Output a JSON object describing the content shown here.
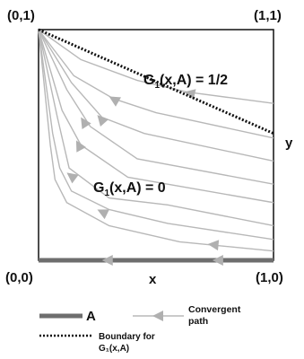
{
  "corners": {
    "top_left": "(0,1)",
    "top_right": "(1,1)",
    "bottom_left": "(0,0)",
    "bottom_right": "(1,0)"
  },
  "axes": {
    "x": "x",
    "y": "y"
  },
  "annotations": {
    "g_half_prefix": "G",
    "g_half_sub": "1",
    "g_half_suffix": "(x,A) = 1/2",
    "g_zero_prefix": "G",
    "g_zero_sub": "1",
    "g_zero_suffix": "(x,A) = 0"
  },
  "legend": {
    "a_label": "A",
    "path_label_line1": "Convergent",
    "path_label_line2": "path",
    "boundary_line1": "Boundary for",
    "boundary_line2": "G₁(x,A)"
  },
  "colors": {
    "frame": "#111111",
    "path": "#b8b8b8",
    "arrow": "#b0b0b0",
    "set_a": "#6e6e6e",
    "boundary": "#111111"
  },
  "paths": [
    {
      "points": [
        [
          0,
          1
        ],
        [
          0.18,
          0.87
        ],
        [
          0.42,
          0.78
        ],
        [
          0.63,
          0.73
        ],
        [
          1,
          0.68
        ]
      ],
      "arrow": [
        0.62,
        0.73
      ]
    },
    {
      "points": [
        [
          0,
          1
        ],
        [
          0.15,
          0.8
        ],
        [
          0.32,
          0.7
        ],
        [
          0.5,
          0.64
        ],
        [
          1,
          0.53
        ]
      ],
      "arrow": [
        0.3,
        0.71
      ]
    },
    {
      "points": [
        [
          0,
          1
        ],
        [
          0.14,
          0.77
        ],
        [
          0.27,
          0.62
        ],
        [
          0.45,
          0.55
        ],
        [
          1,
          0.43
        ]
      ],
      "arrow": [
        0.25,
        0.63
      ]
    },
    {
      "points": [
        [
          0,
          1
        ],
        [
          0.12,
          0.74
        ],
        [
          0.22,
          0.58
        ],
        [
          0.42,
          0.44
        ],
        [
          1,
          0.33
        ]
      ],
      "arrow": [
        0.18,
        0.62
      ]
    },
    {
      "points": [
        [
          0,
          1
        ],
        [
          0.1,
          0.65
        ],
        [
          0.18,
          0.5
        ],
        [
          0.38,
          0.36
        ],
        [
          1,
          0.25
        ]
      ],
      "arrow": [
        0.16,
        0.52
      ]
    },
    {
      "points": [
        [
          0,
          1
        ],
        [
          0.08,
          0.62
        ],
        [
          0.13,
          0.4
        ],
        [
          0.3,
          0.27
        ],
        [
          0.55,
          0.24
        ],
        [
          1,
          0.15
        ]
      ],
      "arrow": [
        0.12,
        0.38
      ]
    },
    {
      "points": [
        [
          0,
          1
        ],
        [
          0.06,
          0.55
        ],
        [
          0.09,
          0.4
        ],
        [
          0.14,
          0.3
        ],
        [
          0.3,
          0.22
        ],
        [
          0.55,
          0.16
        ],
        [
          1,
          0.09
        ]
      ],
      "arrow": [
        0.25,
        0.22
      ]
    },
    {
      "points": [
        [
          0,
          1
        ],
        [
          0.05,
          0.5
        ],
        [
          0.07,
          0.35
        ],
        [
          0.12,
          0.25
        ],
        [
          0.3,
          0.15
        ],
        [
          0.6,
          0.08
        ],
        [
          1,
          0.04
        ]
      ],
      "arrow": [
        0.72,
        0.07
      ]
    }
  ],
  "bottom_arrows": [
    0.27,
    0.74
  ],
  "boundary_line": {
    "from": [
      0,
      1
    ],
    "to": [
      1,
      0.55
    ]
  }
}
